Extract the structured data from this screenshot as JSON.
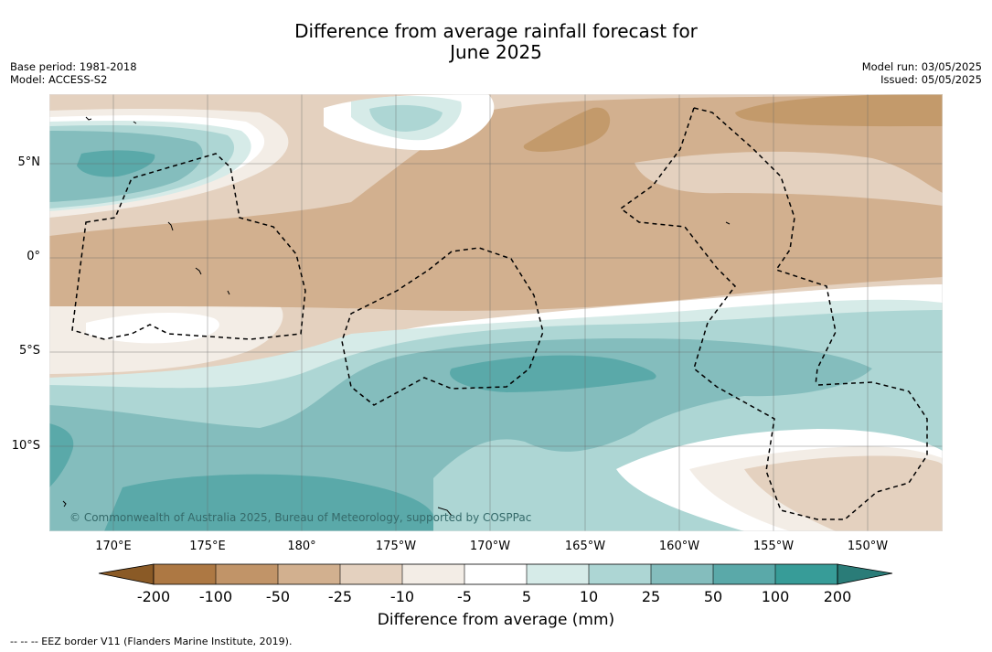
{
  "title_line1": "Difference from average rainfall forecast for",
  "title_line2": "June 2025",
  "meta_left": {
    "base_period": "Base period: 1981-2018",
    "model": "Model: ACCESS-S2"
  },
  "meta_right": {
    "model_run": "Model run: 03/05/2025",
    "issued": "Issued: 05/05/2025"
  },
  "lat_labels": [
    "5°N",
    "0°",
    "5°S",
    "10°S"
  ],
  "lon_labels": [
    "170°E",
    "175°E",
    "180°",
    "175°W",
    "170°W",
    "165°W",
    "160°W",
    "155°W",
    "150°W"
  ],
  "copyright": "© Commonwealth of Australia 2025, Bureau of Meteorology, supported by COSPPac",
  "colorbar": {
    "label": "Difference from average (mm)",
    "ticks": [
      "-200",
      "-100",
      "-50",
      "-25",
      "-10",
      "-5",
      "5",
      "10",
      "25",
      "50",
      "100",
      "200"
    ],
    "colors": [
      "#8a5a26",
      "#ad7843",
      "#c19468",
      "#d2b08f",
      "#e4d1bf",
      "#f3ede6",
      "#ffffff",
      "#d6ebe8",
      "#add6d4",
      "#84bdbd",
      "#5aa9a9",
      "#379c98",
      "#2a7c78"
    ]
  },
  "footnote": "--  --  -- EEZ border V11 (Flanders Marine Institute, 2019).",
  "colors": {
    "dry_strong": "#c39a6b",
    "dry_mid": "#d2b08f",
    "dry_light": "#e4d1bf",
    "dry_faint": "#f3ede6",
    "neutral": "#ffffff",
    "wet_faint": "#d6ebe8",
    "wet_light": "#add6d4",
    "wet_mid": "#84bdbd",
    "wet_strong": "#5aa9a9"
  }
}
